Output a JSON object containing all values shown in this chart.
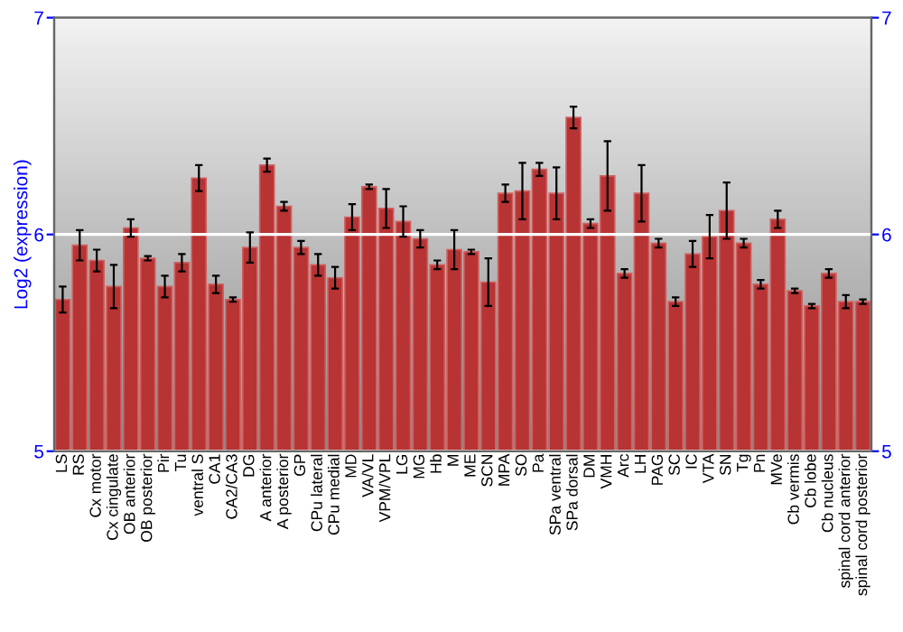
{
  "chart_data": {
    "type": "bar",
    "ylabel": "Log2 (expression)",
    "categories": [
      "LS",
      "RS",
      "Cx motor",
      "Cx cingulate",
      "OB anterior",
      "OB posterior",
      "Pir",
      "Tu",
      "ventral S",
      "CA1",
      "CA2/CA3",
      "DG",
      "A anterior",
      "A posterior",
      "GP",
      "CPu lateral",
      "CPu medial",
      "MD",
      "VA/VL",
      "VPM/VPL",
      "LG",
      "MG",
      "Hb",
      "M",
      "ME",
      "SCN",
      "MPA",
      "SO",
      "Pa",
      "SPa ventral",
      "SPa dorsal",
      "DM",
      "VMH",
      "Arc",
      "LH",
      "PAG",
      "SC",
      "IC",
      "VTA",
      "SN",
      "Tg",
      "Pn",
      "MVe",
      "Cb vermis",
      "Cb lobe",
      "Cb nucleus",
      "spinal cord anterior",
      "spinal cord posterior"
    ],
    "values": [
      5.7,
      5.95,
      5.88,
      5.76,
      6.03,
      5.89,
      5.76,
      5.87,
      6.26,
      5.77,
      5.7,
      5.94,
      6.32,
      6.13,
      5.94,
      5.86,
      5.8,
      6.08,
      6.22,
      6.12,
      6.06,
      5.98,
      5.86,
      5.93,
      5.92,
      5.78,
      6.19,
      6.2,
      6.3,
      6.19,
      6.54,
      6.05,
      6.27,
      5.82,
      6.19,
      5.96,
      5.69,
      5.91,
      5.99,
      6.11,
      5.96,
      5.77,
      6.07,
      5.74,
      5.67,
      5.82,
      5.69,
      5.69
    ],
    "errors": [
      0.06,
      0.07,
      0.05,
      0.1,
      0.04,
      0.01,
      0.05,
      0.04,
      0.06,
      0.04,
      0.01,
      0.07,
      0.03,
      0.02,
      0.03,
      0.05,
      0.05,
      0.06,
      0.01,
      0.09,
      0.07,
      0.04,
      0.02,
      0.09,
      0.01,
      0.11,
      0.04,
      0.13,
      0.03,
      0.12,
      0.05,
      0.02,
      0.16,
      0.02,
      0.13,
      0.02,
      0.02,
      0.06,
      0.1,
      0.13,
      0.02,
      0.02,
      0.04,
      0.01,
      0.01,
      0.02,
      0.03,
      0.01
    ],
    "color": "#b83333",
    "ylim": [
      5,
      7
    ],
    "yticks": [
      5,
      6,
      7
    ],
    "y2lim": [
      5,
      7
    ],
    "y2ticks": [
      5,
      6,
      7
    ],
    "grid": "y"
  }
}
